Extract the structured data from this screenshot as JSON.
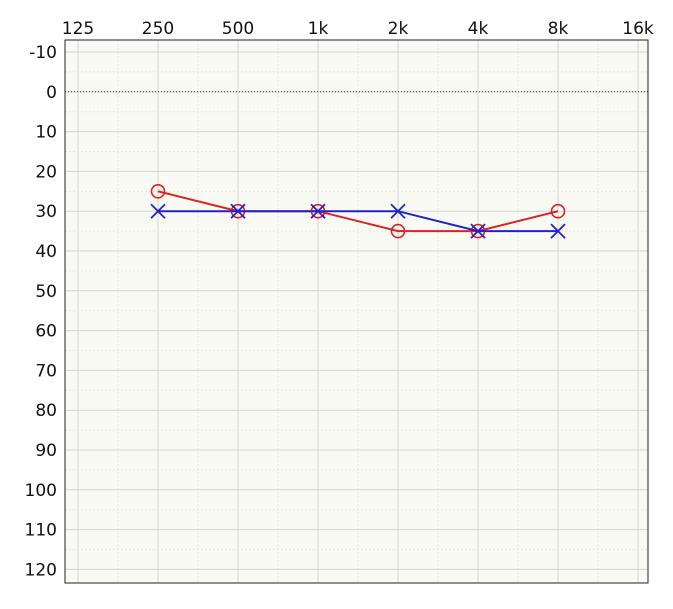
{
  "chart_data": {
    "type": "line",
    "title": "",
    "xlabel": "",
    "ylabel": "",
    "x_scale": "log2",
    "x_ticks": [
      "125",
      "250",
      "500",
      "1k",
      "2k",
      "4k",
      "8k",
      "16k"
    ],
    "x_values": [
      125,
      250,
      500,
      1000,
      2000,
      4000,
      8000,
      16000
    ],
    "y_ticks": [
      "-10",
      "0",
      "10",
      "20",
      "30",
      "40",
      "50",
      "60",
      "70",
      "80",
      "90",
      "100",
      "110",
      "120"
    ],
    "ylim": [
      -10,
      120
    ],
    "y_inverted": true,
    "reference_line": 0,
    "grid": true,
    "series": [
      {
        "marker": "circle",
        "color": "#dd2222",
        "x": [
          250,
          500,
          1000,
          2000,
          4000,
          8000
        ],
        "values": [
          25,
          30,
          30,
          35,
          35,
          30
        ]
      },
      {
        "marker": "cross",
        "color": "#2222cc",
        "x": [
          250,
          500,
          1000,
          2000,
          4000,
          8000
        ],
        "values": [
          30,
          30,
          30,
          30,
          35,
          35
        ]
      }
    ]
  },
  "colors": {
    "plot_background": "#fafaf5",
    "grid_major": "#d4d4d0",
    "grid_minor": "#e6e6e2",
    "frame": "#222222"
  }
}
